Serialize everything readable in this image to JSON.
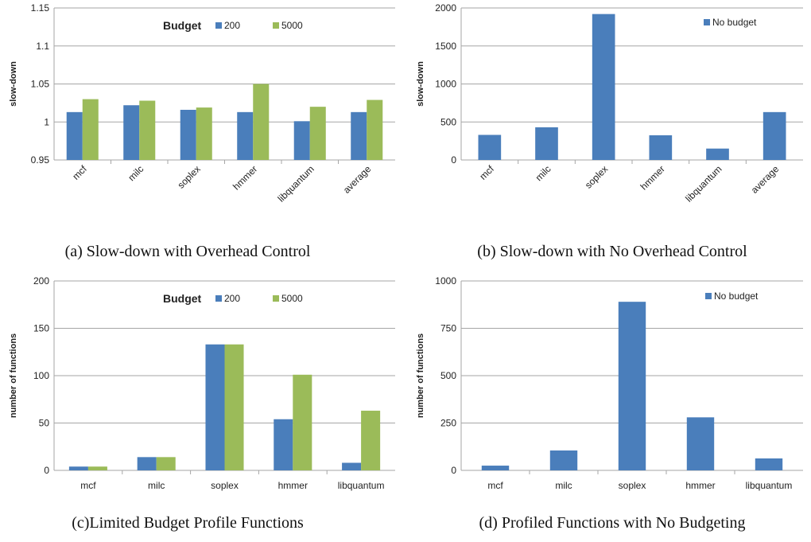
{
  "chart_data": [
    {
      "type": "bar",
      "title": "(a) Slow-down with Overhead Control",
      "ylabel": "slow-down",
      "legend_title": "Budget",
      "categories": [
        "mcf",
        "milc",
        "soplex",
        "hmmer",
        "libquantum",
        "average"
      ],
      "series": [
        {
          "name": "200",
          "color": "#4a7ebb",
          "values": [
            1.013,
            1.022,
            1.016,
            1.013,
            1.001,
            1.013
          ]
        },
        {
          "name": "5000",
          "color": "#9bbb59",
          "values": [
            1.03,
            1.028,
            1.019,
            1.05,
            1.02,
            1.029
          ]
        }
      ],
      "ylim": [
        0.95,
        1.15
      ],
      "yticks": [
        0.95,
        1,
        1.05,
        1.1,
        1.15
      ],
      "grid": true,
      "xtick_rotation": -45
    },
    {
      "type": "bar",
      "title": "(b) Slow-down with No Overhead Control",
      "ylabel": "slow-down",
      "categories": [
        "mcf",
        "milc",
        "soplex",
        "hmmer",
        "libquantum",
        "average"
      ],
      "series": [
        {
          "name": "No budget",
          "color": "#4a7ebb",
          "values": [
            330,
            430,
            1920,
            325,
            150,
            630
          ]
        }
      ],
      "ylim": [
        0,
        2000
      ],
      "yticks": [
        0,
        500,
        1000,
        1500,
        2000
      ],
      "grid": true,
      "xtick_rotation": -45
    },
    {
      "type": "bar",
      "title": "(c)Limited Budget Profile Functions",
      "ylabel": "number of functions",
      "legend_title": "Budget",
      "categories": [
        "mcf",
        "milc",
        "soplex",
        "hmmer",
        "libquantum"
      ],
      "series": [
        {
          "name": "200",
          "color": "#4a7ebb",
          "values": [
            4,
            14,
            133,
            54,
            8
          ]
        },
        {
          "name": "5000",
          "color": "#9bbb59",
          "values": [
            4,
            14,
            133,
            101,
            63
          ]
        }
      ],
      "ylim": [
        0,
        200
      ],
      "yticks": [
        0,
        50,
        100,
        150,
        200
      ],
      "grid": true,
      "xtick_rotation": 0
    },
    {
      "type": "bar",
      "title": "(d) Profiled Functions with No Budgeting",
      "ylabel": "number of functions",
      "categories": [
        "mcf",
        "milc",
        "soplex",
        "hmmer",
        "libquantum"
      ],
      "series": [
        {
          "name": "No budget",
          "color": "#4a7ebb",
          "values": [
            25,
            105,
            890,
            280,
            63
          ]
        }
      ],
      "ylim": [
        0,
        1000
      ],
      "yticks": [
        0,
        250,
        500,
        750,
        1000
      ],
      "grid": true,
      "xtick_rotation": 0
    }
  ]
}
